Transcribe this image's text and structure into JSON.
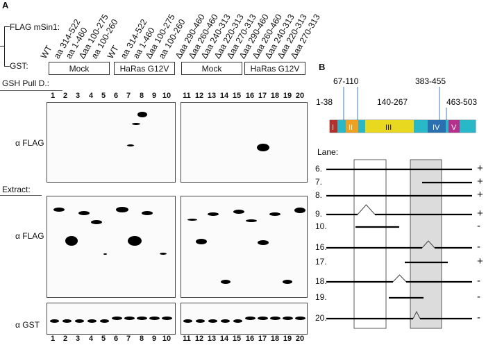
{
  "panel_a_label": "A",
  "panel_b_label": "B",
  "flag_label": "FLAG mSin1:",
  "gst_label": "GST:",
  "left_constructs": [
    "WT",
    "aa 314-522",
    "aa 1-460",
    "Δaa 100-275",
    "aa 100-260",
    "WT",
    "aa 314-522",
    "aa 1-460",
    "Δaa 100-275",
    "aa 100-260"
  ],
  "right_constructs": [
    "Δaa 290-460",
    "Δaa 260-460",
    "Δaa 240-313",
    "Δaa 220-313",
    "Δaa 270-313",
    "Δaa 290-460",
    "Δaa 260-460",
    "Δaa 240-313",
    "Δaa 220-313",
    "Δaa 270-313"
  ],
  "gst_boxes": [
    "Mock",
    "HaRas G12V",
    "Mock",
    "HaRas G12V"
  ],
  "gsh_label": "GSH Pull D.:",
  "extract_label": "Extract:",
  "alpha_flag": "α FLAG",
  "alpha_flag_2": "α FLAG",
  "alpha_gst": "α GST",
  "lanes_left": [
    "1",
    "2",
    "3",
    "4",
    "5",
    "6",
    "7",
    "8",
    "9",
    "10"
  ],
  "lanes_right": [
    "11",
    "12",
    "13",
    "14",
    "15",
    "16",
    "17",
    "18",
    "19",
    "20"
  ],
  "domain_ranges": [
    "67-110",
    "383-455",
    "1-38",
    "140-267",
    "463-503"
  ],
  "domain_numerals": [
    "I",
    "II",
    "III",
    "IV",
    "V"
  ],
  "lane_header": "Lane:",
  "lane_rows": [
    {
      "lane": "6.",
      "result": "+"
    },
    {
      "lane": "7.",
      "result": "+"
    },
    {
      "lane": "8.",
      "result": "+"
    },
    {
      "lane": "9.",
      "result": "+"
    },
    {
      "lane": "10.",
      "result": "-"
    },
    {
      "lane": "16.",
      "result": "-"
    },
    {
      "lane": "17.",
      "result": "+"
    },
    {
      "lane": "18.",
      "result": "-"
    },
    {
      "lane": "19.",
      "result": "-"
    },
    {
      "lane": "20.",
      "result": "-"
    }
  ],
  "colors": {
    "domain_I": "#b5302a",
    "domain_II": "#f0a020",
    "domain_III": "#f2e020",
    "domain_IV": "#2a6fb0",
    "domain_V": "#b5308a",
    "cyan": "#29b8c8"
  }
}
